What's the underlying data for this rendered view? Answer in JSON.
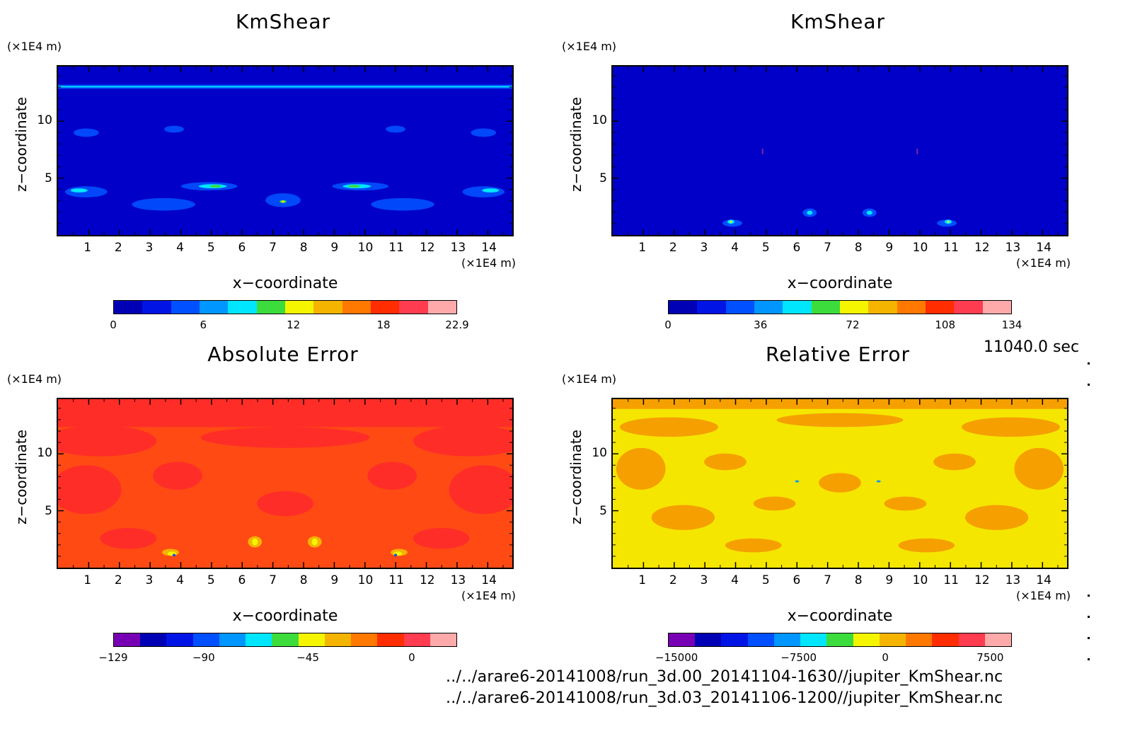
{
  "panels": [
    {
      "title": "KmShear",
      "unit_z": "(×1E4 m)",
      "unit_x": "(×1E4 m)",
      "xlabel": "x−coordinate",
      "ylabel": "z−coordinate",
      "bg": "#0000d8",
      "cbar_colors": [
        "#0000b4",
        "#0014e6",
        "#0050ff",
        "#0096ff",
        "#00e6ff",
        "#3cdc3c",
        "#f5f500",
        "#f5b400",
        "#ff7800",
        "#ff2d00",
        "#ff3c50",
        "#ffaaaa"
      ],
      "cbar_labels": [
        {
          "v": "0",
          "p": 0
        },
        {
          "v": "6",
          "p": 0.262
        },
        {
          "v": "12",
          "p": 0.524
        },
        {
          "v": "18",
          "p": 0.786
        },
        {
          "v": "22.9",
          "p": 1
        }
      ]
    },
    {
      "title": "KmShear",
      "unit_z": "(×1E4 m)",
      "unit_x": "(×1E4 m)",
      "xlabel": "x−coordinate",
      "ylabel": "z−coordinate",
      "bg": "#0000d8",
      "cbar_colors": [
        "#0000b4",
        "#0014e6",
        "#0050ff",
        "#0096ff",
        "#00e6ff",
        "#3cdc3c",
        "#f5f500",
        "#f5b400",
        "#ff7800",
        "#ff2d00",
        "#ff3c50",
        "#ffaaaa"
      ],
      "cbar_labels": [
        {
          "v": "0",
          "p": 0
        },
        {
          "v": "36",
          "p": 0.269
        },
        {
          "v": "72",
          "p": 0.537
        },
        {
          "v": "108",
          "p": 0.806
        },
        {
          "v": "134",
          "p": 1
        }
      ]
    },
    {
      "title": "Absolute Error",
      "unit_z": "(×1E4 m)",
      "unit_x": "(×1E4 m)",
      "xlabel": "x−coordinate",
      "ylabel": "z−coordinate",
      "bg": "#ff3c1e",
      "cbar_colors": [
        "#7800b4",
        "#0000b4",
        "#0014e6",
        "#0050ff",
        "#0096ff",
        "#00e6ff",
        "#3cdc3c",
        "#f5f500",
        "#f5b400",
        "#ff7800",
        "#ff2d00",
        "#ff3c50",
        "#ffaaaa"
      ],
      "cbar_labels": [
        {
          "v": "−129",
          "p": 0
        },
        {
          "v": "−90",
          "p": 0.263
        },
        {
          "v": "−45",
          "p": 0.566
        },
        {
          "v": "0",
          "p": 0.868
        }
      ]
    },
    {
      "title": "Relative Error",
      "unit_z": "(×1E4 m)",
      "unit_x": "(×1E4 m)",
      "xlabel": "x−coordinate",
      "ylabel": "z−coordinate",
      "bg": "#f5e600",
      "cbar_colors": [
        "#7800b4",
        "#0000b4",
        "#0014e6",
        "#0050ff",
        "#0096ff",
        "#00e6ff",
        "#3cdc3c",
        "#f5f500",
        "#f5b400",
        "#ff7800",
        "#ff2d00",
        "#ff3c50",
        "#ffaaaa"
      ],
      "cbar_labels": [
        {
          "v": "−15000",
          "p": 0.025
        },
        {
          "v": "−7500",
          "p": 0.38
        },
        {
          "v": "0",
          "p": 0.632
        },
        {
          "v": "7500",
          "p": 0.937
        }
      ]
    }
  ],
  "axes": {
    "x_ticks": [
      "1",
      "2",
      "3",
      "4",
      "5",
      "6",
      "7",
      "8",
      "9",
      "10",
      "11",
      "12",
      "13",
      "14"
    ],
    "x_range": [
      0,
      14.8
    ],
    "y_ticks": [
      "5",
      "10"
    ],
    "y_range": [
      0,
      14.8
    ]
  },
  "timestamp": "11040.0 sec",
  "files": [
    "../../arare6-20141008/run_3d.00_20141104-1630//jupiter_KmShear.nc",
    "../../arare6-20141008/run_3d.03_20141106-1200//jupiter_KmShear.nc"
  ],
  "chart_data": [
    {
      "type": "heatmap",
      "title": "KmShear",
      "xlabel": "x−coordinate",
      "ylabel": "z−coordinate",
      "xlim": [
        0,
        14.8
      ],
      "ylim": [
        0,
        14.8
      ],
      "colorbar_range": [
        0,
        22.9
      ]
    },
    {
      "type": "heatmap",
      "title": "KmShear",
      "xlabel": "x−coordinate",
      "ylabel": "z−coordinate",
      "xlim": [
        0,
        14.8
      ],
      "ylim": [
        0,
        14.8
      ],
      "colorbar_range": [
        0,
        134
      ]
    },
    {
      "type": "heatmap",
      "title": "Absolute Error",
      "xlabel": "x−coordinate",
      "ylabel": "z−coordinate",
      "xlim": [
        0,
        14.8
      ],
      "ylim": [
        0,
        14.8
      ],
      "colorbar_range": [
        -129,
        10
      ]
    },
    {
      "type": "heatmap",
      "title": "Relative Error",
      "xlabel": "x−coordinate",
      "ylabel": "z−coordinate",
      "xlim": [
        0,
        14.8
      ],
      "ylim": [
        0,
        14.8
      ],
      "colorbar_range": [
        -15000,
        10000
      ]
    }
  ]
}
